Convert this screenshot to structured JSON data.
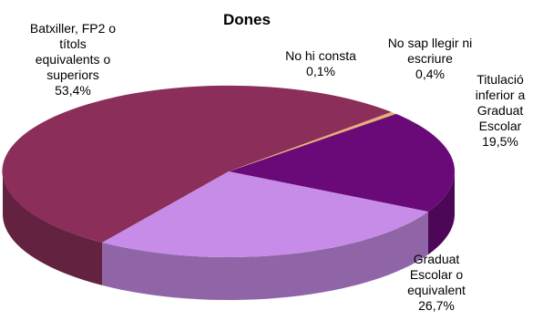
{
  "chart_data": {
    "type": "pie",
    "style": "3d",
    "title": "Dones",
    "legend": "none",
    "slices": [
      {
        "label": "Batxiller, FP2 o títols equivalents o superiors",
        "value": 53.4,
        "value_label": "53,4%",
        "color": "#8b2f5a"
      },
      {
        "label": "No hi consta",
        "value": 0.1,
        "value_label": "0,1%",
        "color": "#d98b6a"
      },
      {
        "label": "No sap llegir ni escriure",
        "value": 0.4,
        "value_label": "0,4%",
        "color": "#e8b070"
      },
      {
        "label": "Titulació inferior a Graduat Escolar",
        "value": 19.5,
        "value_label": "19,5%",
        "color": "#6a0a78"
      },
      {
        "label": "Graduat Escolar o equivalent",
        "value": 26.7,
        "value_label": "26,7%",
        "color": "#c68ce8"
      }
    ]
  }
}
